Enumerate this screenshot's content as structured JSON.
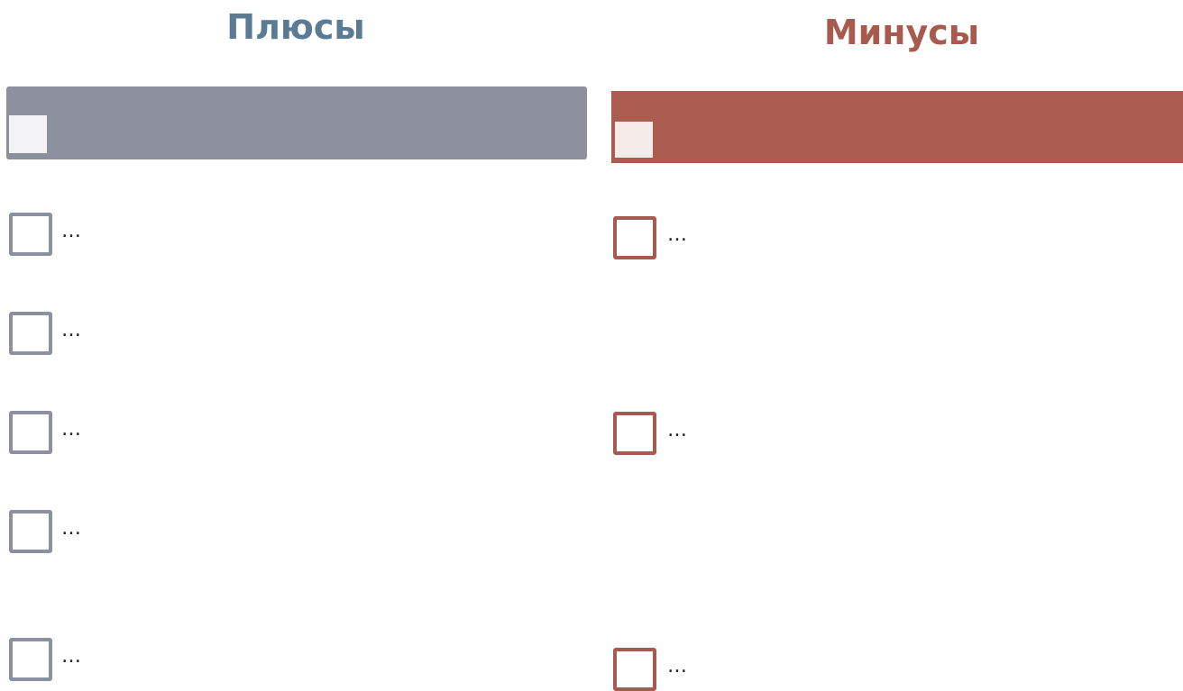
{
  "columns": [
    {
      "title": "Плюсы",
      "items": [
        "…",
        "…",
        "…",
        "…",
        "…"
      ]
    },
    {
      "title": "Минусы",
      "items": [
        "…",
        "…",
        "…"
      ]
    }
  ]
}
